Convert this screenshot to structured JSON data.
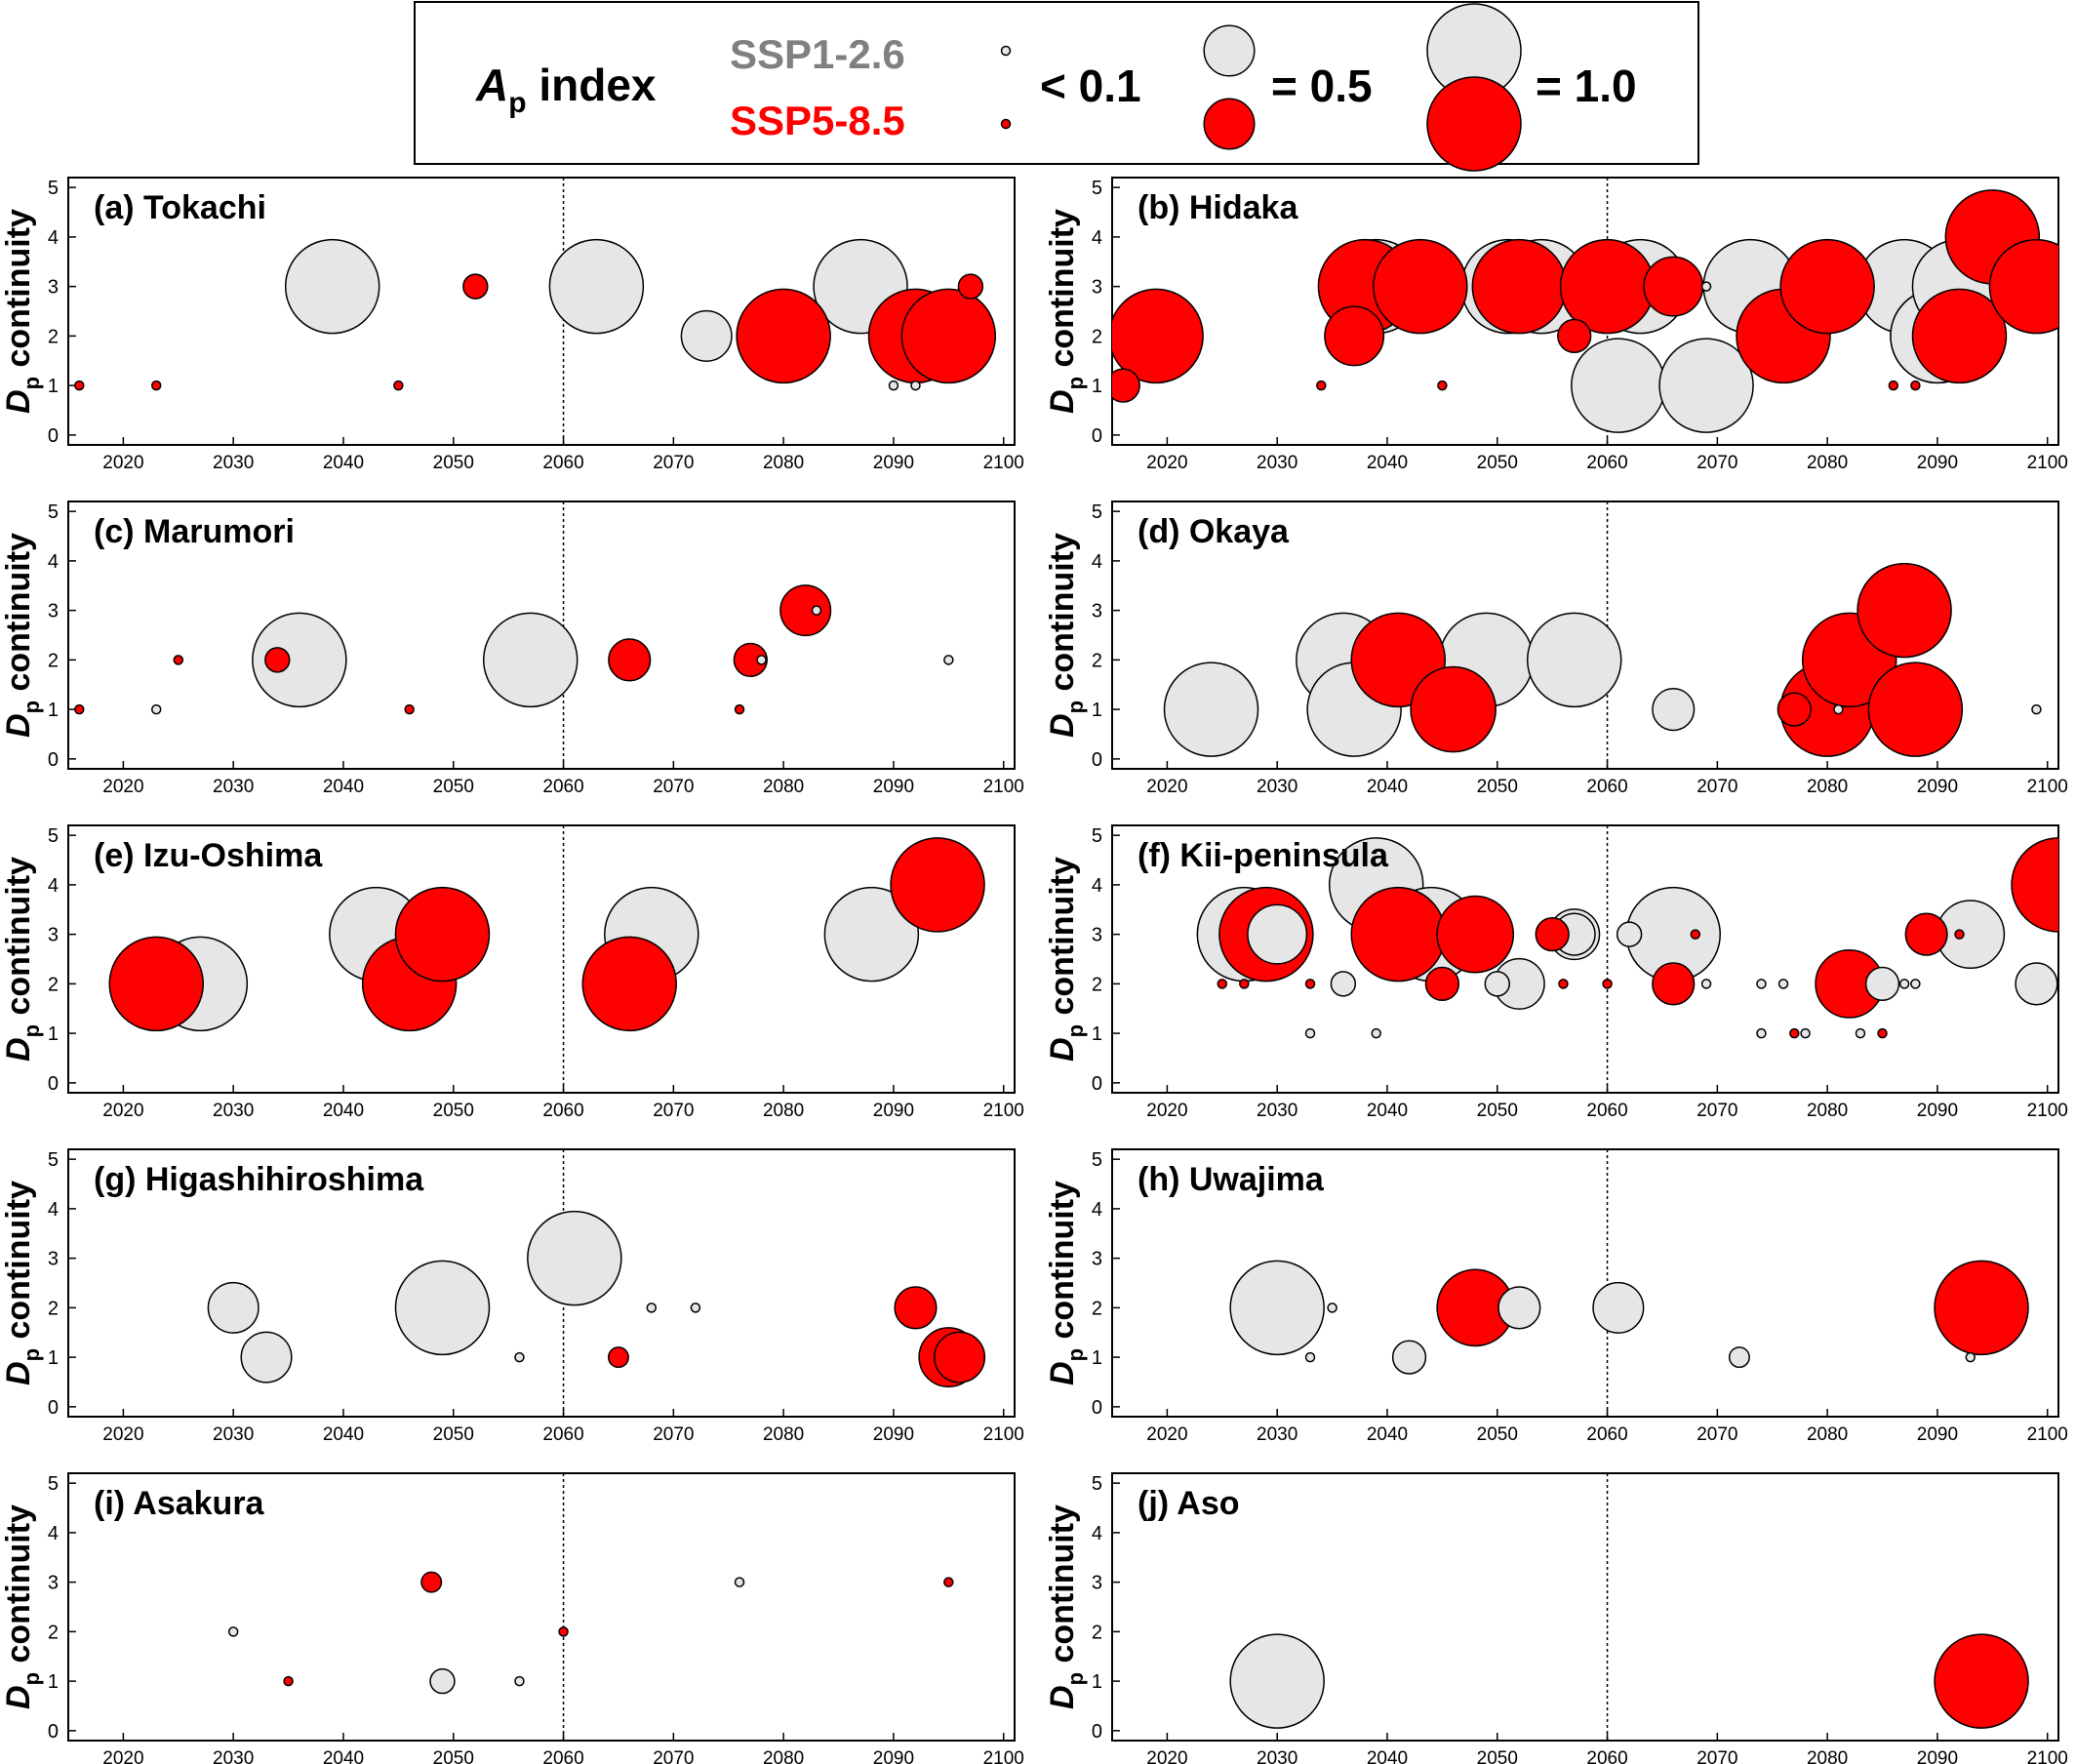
{
  "legend": {
    "title_main": "A",
    "title_sub": "p",
    "title_rest": " index",
    "scenario_low": "SSP1-2.6",
    "scenario_high": "SSP5-8.5",
    "sizes": [
      {
        "label": "< 0.1",
        "value": 0.1
      },
      {
        "label": "= 0.5",
        "value": 0.5
      },
      {
        "label": "= 1.0",
        "value": 1.0
      }
    ],
    "colors": {
      "ssp126": "#e6e6e6",
      "ssp585": "#ff0000",
      "ssp126_text": "#808080",
      "ssp585_text": "#ff0000"
    }
  },
  "axis_common": {
    "ylabel_main": "D",
    "ylabel_sub": "p",
    "ylabel_rest": " continuity",
    "xlim": [
      2015,
      2101
    ],
    "ylim": [
      -0.2,
      5.2
    ],
    "xticks": [
      2020,
      2030,
      2040,
      2050,
      2060,
      2070,
      2080,
      2090,
      2100
    ],
    "yticks": [
      0,
      1,
      2,
      3,
      4,
      5
    ],
    "reference_line_x": 2060
  },
  "chart_data": [
    {
      "type": "scatter",
      "title": "(a) Tokachi",
      "series": [
        {
          "name": "SSP1-2.6",
          "points": [
            {
              "x": 2039,
              "y": 3,
              "a": 1.0
            },
            {
              "x": 2063,
              "y": 3,
              "a": 1.0
            },
            {
              "x": 2073,
              "y": 2,
              "a": 0.5
            },
            {
              "x": 2087,
              "y": 3,
              "a": 1.0
            },
            {
              "x": 2090,
              "y": 1,
              "a": 0.05
            },
            {
              "x": 2092,
              "y": 1,
              "a": 0.05
            }
          ]
        },
        {
          "name": "SSP5-8.5",
          "points": [
            {
              "x": 2016,
              "y": 1,
              "a": 0.05
            },
            {
              "x": 2023,
              "y": 1,
              "a": 0.05
            },
            {
              "x": 2045,
              "y": 1,
              "a": 0.05
            },
            {
              "x": 2052,
              "y": 3,
              "a": 0.2
            },
            {
              "x": 2080,
              "y": 2,
              "a": 1.0
            },
            {
              "x": 2092,
              "y": 2,
              "a": 1.0
            },
            {
              "x": 2095,
              "y": 2,
              "a": 1.0
            },
            {
              "x": 2097,
              "y": 3,
              "a": 0.2
            }
          ]
        }
      ]
    },
    {
      "type": "scatter",
      "title": "(b) Hidaka",
      "series": [
        {
          "name": "SSP1-2.6",
          "points": [
            {
              "x": 2039,
              "y": 3,
              "a": 1.0
            },
            {
              "x": 2051,
              "y": 3,
              "a": 1.0
            },
            {
              "x": 2054,
              "y": 3,
              "a": 1.0
            },
            {
              "x": 2061,
              "y": 1,
              "a": 1.0
            },
            {
              "x": 2063,
              "y": 3,
              "a": 1.0
            },
            {
              "x": 2069,
              "y": 3,
              "a": 0.05
            },
            {
              "x": 2069,
              "y": 1,
              "a": 1.0
            },
            {
              "x": 2073,
              "y": 3,
              "a": 1.0
            },
            {
              "x": 2087,
              "y": 3,
              "a": 1.0
            },
            {
              "x": 2090,
              "y": 2,
              "a": 1.0
            },
            {
              "x": 2090,
              "y": 2,
              "a": 1.0
            },
            {
              "x": 2092,
              "y": 3,
              "a": 1.0
            }
          ]
        },
        {
          "name": "SSP5-8.5",
          "points": [
            {
              "x": 2016,
              "y": 1,
              "a": 0.3
            },
            {
              "x": 2019,
              "y": 2,
              "a": 1.0
            },
            {
              "x": 2034,
              "y": 1,
              "a": 0.05
            },
            {
              "x": 2037,
              "y": 2,
              "a": 0.6
            },
            {
              "x": 2038,
              "y": 3,
              "a": 1.0
            },
            {
              "x": 2043,
              "y": 3,
              "a": 1.0
            },
            {
              "x": 2045,
              "y": 1,
              "a": 0.05
            },
            {
              "x": 2052,
              "y": 3,
              "a": 1.0
            },
            {
              "x": 2057,
              "y": 2,
              "a": 0.3
            },
            {
              "x": 2060,
              "y": 3,
              "a": 1.0
            },
            {
              "x": 2066,
              "y": 3,
              "a": 0.6
            },
            {
              "x": 2076,
              "y": 2,
              "a": 1.0
            },
            {
              "x": 2080,
              "y": 3,
              "a": 1.0
            },
            {
              "x": 2086,
              "y": 1,
              "a": 0.05
            },
            {
              "x": 2088,
              "y": 1,
              "a": 0.1
            },
            {
              "x": 2092,
              "y": 2,
              "a": 1.0
            },
            {
              "x": 2095,
              "y": 4,
              "a": 1.0
            },
            {
              "x": 2099,
              "y": 3,
              "a": 1.0
            }
          ]
        }
      ]
    },
    {
      "type": "scatter",
      "title": "(c) Marumori",
      "series": [
        {
          "name": "SSP1-2.6",
          "points": [
            {
              "x": 2023,
              "y": 1,
              "a": 0.05
            },
            {
              "x": 2036,
              "y": 2,
              "a": 1.0
            },
            {
              "x": 2057,
              "y": 2,
              "a": 1.0
            },
            {
              "x": 2078,
              "y": 2,
              "a": 0.1
            },
            {
              "x": 2083,
              "y": 3,
              "a": 0.05
            },
            {
              "x": 2095,
              "y": 2,
              "a": 0.05
            }
          ]
        },
        {
          "name": "SSP5-8.5",
          "points": [
            {
              "x": 2016,
              "y": 1,
              "a": 0.1
            },
            {
              "x": 2025,
              "y": 2,
              "a": 0.1
            },
            {
              "x": 2034,
              "y": 2,
              "a": 0.2
            },
            {
              "x": 2046,
              "y": 1,
              "a": 0.05
            },
            {
              "x": 2066,
              "y": 2,
              "a": 0.4
            },
            {
              "x": 2076,
              "y": 1,
              "a": 0.05
            },
            {
              "x": 2077,
              "y": 2,
              "a": 0.3
            },
            {
              "x": 2082,
              "y": 3,
              "a": 0.5
            }
          ]
        }
      ]
    },
    {
      "type": "scatter",
      "title": "(d) Okaya",
      "series": [
        {
          "name": "SSP1-2.6",
          "points": [
            {
              "x": 2024,
              "y": 1,
              "a": 1.0
            },
            {
              "x": 2036,
              "y": 2,
              "a": 1.0
            },
            {
              "x": 2037,
              "y": 1,
              "a": 1.0
            },
            {
              "x": 2049,
              "y": 2,
              "a": 1.0
            },
            {
              "x": 2057,
              "y": 2,
              "a": 1.0
            },
            {
              "x": 2066,
              "y": 1,
              "a": 0.4
            },
            {
              "x": 2081,
              "y": 1,
              "a": 0.05
            },
            {
              "x": 2099,
              "y": 1,
              "a": 0.05
            }
          ]
        },
        {
          "name": "SSP5-8.5",
          "points": [
            {
              "x": 2041,
              "y": 2,
              "a": 1.0
            },
            {
              "x": 2046,
              "y": 1,
              "a": 0.9
            },
            {
              "x": 2077,
              "y": 1,
              "a": 0.3
            },
            {
              "x": 2080,
              "y": 1,
              "a": 1.0
            },
            {
              "x": 2082,
              "y": 2,
              "a": 1.0
            },
            {
              "x": 2087,
              "y": 3,
              "a": 1.0
            },
            {
              "x": 2088,
              "y": 1,
              "a": 1.0
            }
          ]
        }
      ]
    },
    {
      "type": "scatter",
      "title": "(e) Izu-Oshima",
      "series": [
        {
          "name": "SSP1-2.6",
          "points": [
            {
              "x": 2027,
              "y": 2,
              "a": 1.0
            },
            {
              "x": 2043,
              "y": 3,
              "a": 1.0
            },
            {
              "x": 2068,
              "y": 3,
              "a": 1.0
            },
            {
              "x": 2088,
              "y": 3,
              "a": 1.0
            }
          ]
        },
        {
          "name": "SSP5-8.5",
          "points": [
            {
              "x": 2023,
              "y": 2,
              "a": 1.0
            },
            {
              "x": 2046,
              "y": 2,
              "a": 1.0
            },
            {
              "x": 2049,
              "y": 3,
              "a": 1.0
            },
            {
              "x": 2066,
              "y": 2,
              "a": 1.0
            },
            {
              "x": 2094,
              "y": 4,
              "a": 1.0
            }
          ]
        }
      ]
    },
    {
      "type": "scatter",
      "title": "(f) Kii-peninsula",
      "series": [
        {
          "name": "SSP1-2.6",
          "points": [
            {
              "x": 2027,
              "y": 3,
              "a": 1.0
            },
            {
              "x": 2030,
              "y": 3,
              "a": 0.6
            },
            {
              "x": 2033,
              "y": 1,
              "a": 0.05
            },
            {
              "x": 2036,
              "y": 2,
              "a": 0.2
            },
            {
              "x": 2039,
              "y": 4,
              "a": 1.0
            },
            {
              "x": 2039,
              "y": 1,
              "a": 0.05
            },
            {
              "x": 2044,
              "y": 3,
              "a": 1.0
            },
            {
              "x": 2050,
              "y": 2,
              "a": 0.2
            },
            {
              "x": 2052,
              "y": 2,
              "a": 0.5
            },
            {
              "x": 2057,
              "y": 3,
              "a": 0.5
            },
            {
              "x": 2057,
              "y": 3,
              "a": 0.4
            },
            {
              "x": 2062,
              "y": 3,
              "a": 0.2
            },
            {
              "x": 2066,
              "y": 3,
              "a": 1.0
            },
            {
              "x": 2069,
              "y": 2,
              "a": 0.05
            },
            {
              "x": 2074,
              "y": 2,
              "a": 0.1
            },
            {
              "x": 2074,
              "y": 1,
              "a": 0.05
            },
            {
              "x": 2076,
              "y": 2,
              "a": 0.05
            },
            {
              "x": 2078,
              "y": 1,
              "a": 0.05
            },
            {
              "x": 2083,
              "y": 1,
              "a": 0.05
            },
            {
              "x": 2085,
              "y": 2,
              "a": 0.3
            },
            {
              "x": 2087,
              "y": 2,
              "a": 0.05
            },
            {
              "x": 2088,
              "y": 2,
              "a": 0.05
            },
            {
              "x": 2093,
              "y": 3,
              "a": 0.7
            },
            {
              "x": 2099,
              "y": 2,
              "a": 0.4
            }
          ]
        },
        {
          "name": "SSP5-8.5",
          "points": [
            {
              "x": 2025,
              "y": 2,
              "a": 0.05
            },
            {
              "x": 2027,
              "y": 2,
              "a": 0.05
            },
            {
              "x": 2029,
              "y": 3,
              "a": 1.0
            },
            {
              "x": 2033,
              "y": 2,
              "a": 0.05
            },
            {
              "x": 2041,
              "y": 3,
              "a": 1.0
            },
            {
              "x": 2045,
              "y": 2,
              "a": 0.3
            },
            {
              "x": 2048,
              "y": 3,
              "a": 0.8
            },
            {
              "x": 2055,
              "y": 3,
              "a": 0.3
            },
            {
              "x": 2056,
              "y": 2,
              "a": 0.05
            },
            {
              "x": 2060,
              "y": 2,
              "a": 0.05
            },
            {
              "x": 2066,
              "y": 2,
              "a": 0.4
            },
            {
              "x": 2068,
              "y": 3,
              "a": 0.05
            },
            {
              "x": 2077,
              "y": 1,
              "a": 0.05
            },
            {
              "x": 2082,
              "y": 2,
              "a": 0.7
            },
            {
              "x": 2085,
              "y": 1,
              "a": 0.1
            },
            {
              "x": 2089,
              "y": 3,
              "a": 0.4
            },
            {
              "x": 2092,
              "y": 3,
              "a": 0.05
            },
            {
              "x": 2101,
              "y": 4,
              "a": 1.0
            }
          ]
        }
      ]
    },
    {
      "type": "scatter",
      "title": "(g) Higashihiroshima",
      "series": [
        {
          "name": "SSP1-2.6",
          "points": [
            {
              "x": 2030,
              "y": 2,
              "a": 0.5
            },
            {
              "x": 2033,
              "y": 1,
              "a": 0.5
            },
            {
              "x": 2049,
              "y": 2,
              "a": 1.0
            },
            {
              "x": 2056,
              "y": 1,
              "a": 0.05
            },
            {
              "x": 2061,
              "y": 3,
              "a": 1.0
            },
            {
              "x": 2068,
              "y": 2,
              "a": 0.1
            },
            {
              "x": 2072,
              "y": 2,
              "a": 0.05
            }
          ]
        },
        {
          "name": "SSP5-8.5",
          "points": [
            {
              "x": 2065,
              "y": 1,
              "a": 0.15
            },
            {
              "x": 2092,
              "y": 2,
              "a": 0.4
            },
            {
              "x": 2095,
              "y": 1,
              "a": 0.6
            },
            {
              "x": 2096,
              "y": 1,
              "a": 0.5
            }
          ]
        }
      ]
    },
    {
      "type": "scatter",
      "title": "(h) Uwajima",
      "series": [
        {
          "name": "SSP1-2.6",
          "points": [
            {
              "x": 2030,
              "y": 2,
              "a": 1.0
            },
            {
              "x": 2033,
              "y": 1,
              "a": 0.1
            },
            {
              "x": 2035,
              "y": 2,
              "a": 0.05
            },
            {
              "x": 2042,
              "y": 1,
              "a": 0.3
            },
            {
              "x": 2052,
              "y": 2,
              "a": 0.4
            },
            {
              "x": 2061,
              "y": 2,
              "a": 0.5
            },
            {
              "x": 2072,
              "y": 1,
              "a": 0.15
            },
            {
              "x": 2093,
              "y": 1,
              "a": 0.05
            }
          ]
        },
        {
          "name": "SSP5-8.5",
          "points": [
            {
              "x": 2048,
              "y": 2,
              "a": 0.8
            },
            {
              "x": 2094,
              "y": 2,
              "a": 1.0
            }
          ]
        }
      ]
    },
    {
      "type": "scatter",
      "title": "(i) Asakura",
      "series": [
        {
          "name": "SSP1-2.6",
          "points": [
            {
              "x": 2030,
              "y": 2,
              "a": 0.05
            },
            {
              "x": 2049,
              "y": 1,
              "a": 0.2
            },
            {
              "x": 2056,
              "y": 1,
              "a": 0.05
            },
            {
              "x": 2076,
              "y": 3,
              "a": 0.05
            }
          ]
        },
        {
          "name": "SSP5-8.5",
          "points": [
            {
              "x": 2035,
              "y": 1,
              "a": 0.05
            },
            {
              "x": 2048,
              "y": 3,
              "a": 0.15
            },
            {
              "x": 2060,
              "y": 2,
              "a": 0.05
            },
            {
              "x": 2095,
              "y": 3,
              "a": 0.05
            }
          ]
        }
      ]
    },
    {
      "type": "scatter",
      "title": "(j) Aso",
      "series": [
        {
          "name": "SSP1-2.6",
          "points": [
            {
              "x": 2030,
              "y": 1,
              "a": 1.0
            }
          ]
        },
        {
          "name": "SSP5-8.5",
          "points": [
            {
              "x": 2094,
              "y": 1,
              "a": 1.0
            }
          ]
        }
      ]
    }
  ]
}
